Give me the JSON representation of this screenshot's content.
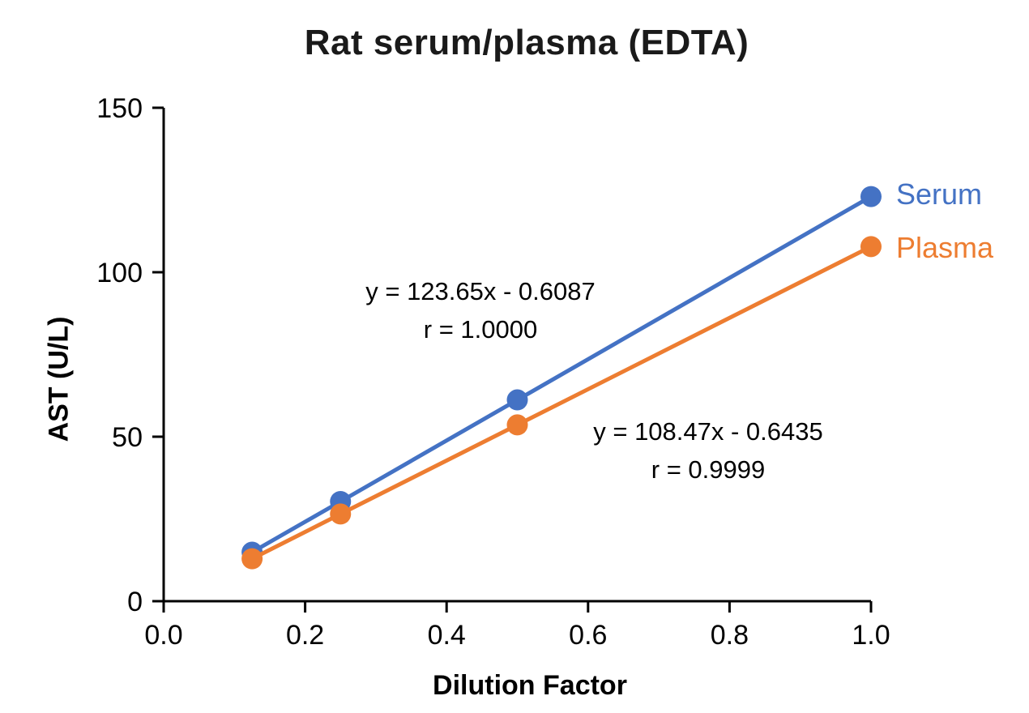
{
  "colors": {
    "background": "#FFFFFF",
    "axis": "#000000",
    "text": "#000000",
    "serum": "#4472C4",
    "plasma": "#ED7D31"
  },
  "chart_data": {
    "type": "line",
    "title": "Rat serum/plasma (EDTA)",
    "xlabel": "Dilution Factor",
    "ylabel": "AST (U/L)",
    "xlim": [
      0.0,
      1.0
    ],
    "ylim": [
      0,
      150
    ],
    "x_ticks": [
      "0.0",
      "0.2",
      "0.4",
      "0.6",
      "0.8",
      "1.0"
    ],
    "y_ticks": [
      "0",
      "50",
      "100",
      "150"
    ],
    "grid": false,
    "legend_position": "end-of-line-right",
    "x": [
      0.125,
      0.25,
      0.5,
      1.0
    ],
    "series": [
      {
        "name": "Serum",
        "color": "#4472C4",
        "values": [
          14.9,
          30.3,
          61.2,
          123.0
        ],
        "equation": "y = 123.65x - 0.6087",
        "correlation": "r = 1.0000"
      },
      {
        "name": "Plasma",
        "color": "#ED7D31",
        "values": [
          12.9,
          26.5,
          53.6,
          107.8
        ],
        "equation": "y = 108.47x - 0.6435",
        "correlation": "r = 0.9999"
      }
    ]
  }
}
